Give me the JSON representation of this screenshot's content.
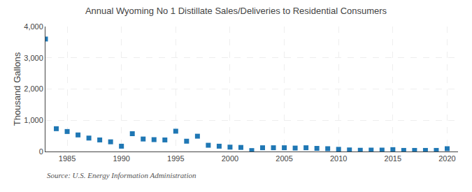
{
  "chart_data": {
    "type": "scatter",
    "title": "Annual Wyoming No 1 Distillate Sales/Deliveries to Residential Consumers",
    "ylabel": "Thousand Gallons",
    "annotations": [
      "Source: U.S. Energy Information Administration"
    ],
    "x": [
      1983,
      1984,
      1985,
      1986,
      1987,
      1988,
      1989,
      1990,
      1991,
      1992,
      1993,
      1994,
      1995,
      1996,
      1997,
      1998,
      1999,
      2000,
      2001,
      2002,
      2003,
      2004,
      2005,
      2006,
      2007,
      2008,
      2009,
      2010,
      2011,
      2012,
      2013,
      2014,
      2015,
      2016,
      2017,
      2018,
      2019,
      2020
    ],
    "values": [
      3600,
      730,
      640,
      530,
      430,
      370,
      310,
      170,
      570,
      400,
      380,
      370,
      650,
      330,
      490,
      200,
      170,
      140,
      130,
      30,
      120,
      120,
      120,
      110,
      120,
      100,
      90,
      70,
      50,
      40,
      45,
      45,
      60,
      35,
      35,
      35,
      35,
      90
    ],
    "marker": "square",
    "xlim": [
      1983.0,
      2021.0
    ],
    "xticks": [
      1985,
      1990,
      1995,
      2000,
      2005,
      2010,
      2015,
      2020
    ],
    "ylim": [
      0,
      4000
    ],
    "yticks": [
      0,
      {
        "value": 1000,
        "label": "1,000"
      },
      {
        "value": 2000,
        "label": "2,000"
      },
      {
        "value": 3000,
        "label": "3,000"
      },
      {
        "value": 4000,
        "label": "4,000"
      }
    ],
    "grid": true
  }
}
